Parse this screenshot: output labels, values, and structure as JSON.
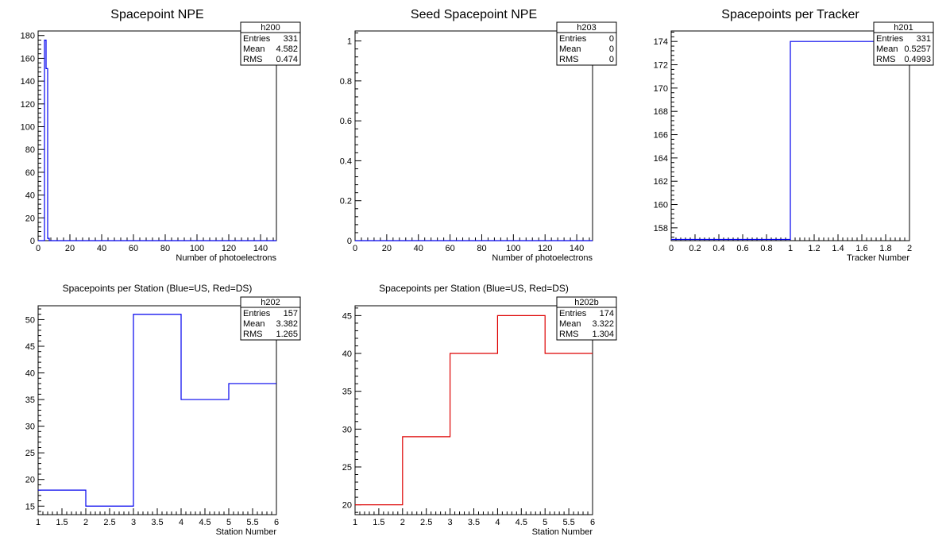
{
  "canvas": {
    "background": "#ffffff",
    "frame_color": "#000000"
  },
  "chart_data": [
    {
      "id": "spacepoint-npe",
      "type": "histogram",
      "title": "Spacepoint NPE",
      "xlabel": "Number of photoelectrons",
      "ylabel": "",
      "xlim": [
        0,
        150
      ],
      "ylim": [
        0,
        184
      ],
      "x_ticks": [
        0,
        20,
        40,
        60,
        80,
        100,
        120,
        140
      ],
      "y_ticks": [
        0,
        20,
        40,
        60,
        80,
        100,
        120,
        140,
        160,
        180
      ],
      "line_color": "#0000ee",
      "bin_edges": [
        0,
        1,
        2,
        3,
        4,
        5,
        6,
        7,
        8,
        9,
        10,
        150
      ],
      "values": [
        0,
        0,
        0,
        0,
        176,
        151,
        2,
        0,
        0,
        0,
        0
      ],
      "stats": {
        "name": "h200",
        "entries": "331",
        "mean": "4.582",
        "rms": "0.474"
      }
    },
    {
      "id": "seed-spacepoint-npe",
      "type": "histogram",
      "title": "Seed Spacepoint NPE",
      "xlabel": "Number of photoelectrons",
      "ylabel": "",
      "xlim": [
        0,
        150
      ],
      "ylim": [
        0,
        1.05
      ],
      "x_ticks": [
        0,
        20,
        40,
        60,
        80,
        100,
        120,
        140
      ],
      "y_ticks": [
        0,
        0.2,
        0.4,
        0.6,
        0.8,
        1
      ],
      "line_color": "#0000ee",
      "bin_edges": [
        0,
        150
      ],
      "values": [
        0
      ],
      "stats": {
        "name": "h203",
        "entries": "0",
        "mean": "0",
        "rms": "0"
      }
    },
    {
      "id": "spacepoints-per-tracker",
      "type": "histogram",
      "title": "Spacepoints per Tracker",
      "xlabel": "Tracker Number",
      "ylabel": "",
      "xlim": [
        0,
        2
      ],
      "ylim": [
        156.9,
        174.9
      ],
      "x_ticks": [
        0,
        0.2,
        0.4,
        0.6,
        0.8,
        1,
        1.2,
        1.4,
        1.6,
        1.8,
        2
      ],
      "y_ticks": [
        158,
        160,
        162,
        164,
        166,
        168,
        170,
        172,
        174
      ],
      "line_color": "#0000ee",
      "bin_edges": [
        0,
        1,
        2
      ],
      "values": [
        157,
        174
      ],
      "stats": {
        "name": "h201",
        "entries": "331",
        "mean": "0.5257",
        "rms": "0.4993"
      }
    },
    {
      "id": "spacepoints-per-station-us",
      "type": "histogram",
      "title": "Spacepoints per Station (Blue=US, Red=DS)",
      "xlabel": "Station Number",
      "ylabel": "",
      "xlim": [
        1,
        6
      ],
      "ylim": [
        13.4,
        52.6
      ],
      "x_ticks": [
        1,
        1.5,
        2,
        2.5,
        3,
        3.5,
        4,
        4.5,
        5,
        5.5,
        6
      ],
      "y_ticks": [
        15,
        20,
        25,
        30,
        35,
        40,
        45,
        50
      ],
      "line_color": "#0000ee",
      "bin_edges": [
        1,
        2,
        3,
        4,
        5,
        6
      ],
      "values": [
        18,
        15,
        51,
        35,
        38
      ],
      "stats": {
        "name": "h202",
        "entries": "157",
        "mean": "3.382",
        "rms": "1.265"
      }
    },
    {
      "id": "spacepoints-per-station-ds",
      "type": "histogram",
      "title": "Spacepoints per Station (Blue=US, Red=DS)",
      "xlabel": "Station Number",
      "ylabel": "",
      "xlim": [
        1,
        6
      ],
      "ylim": [
        18.7,
        46.3
      ],
      "x_ticks": [
        1,
        1.5,
        2,
        2.5,
        3,
        3.5,
        4,
        4.5,
        5,
        5.5,
        6
      ],
      "y_ticks": [
        20,
        25,
        30,
        35,
        40,
        45
      ],
      "line_color": "#dd0000",
      "bin_edges": [
        1,
        2,
        3,
        4,
        5,
        6
      ],
      "values": [
        20,
        29,
        40,
        45,
        40
      ],
      "stats": {
        "name": "h202b",
        "entries": "174",
        "mean": "3.322",
        "rms": "1.304"
      }
    }
  ],
  "stat_labels": {
    "entries": "Entries",
    "mean": "Mean",
    "rms": "RMS"
  }
}
